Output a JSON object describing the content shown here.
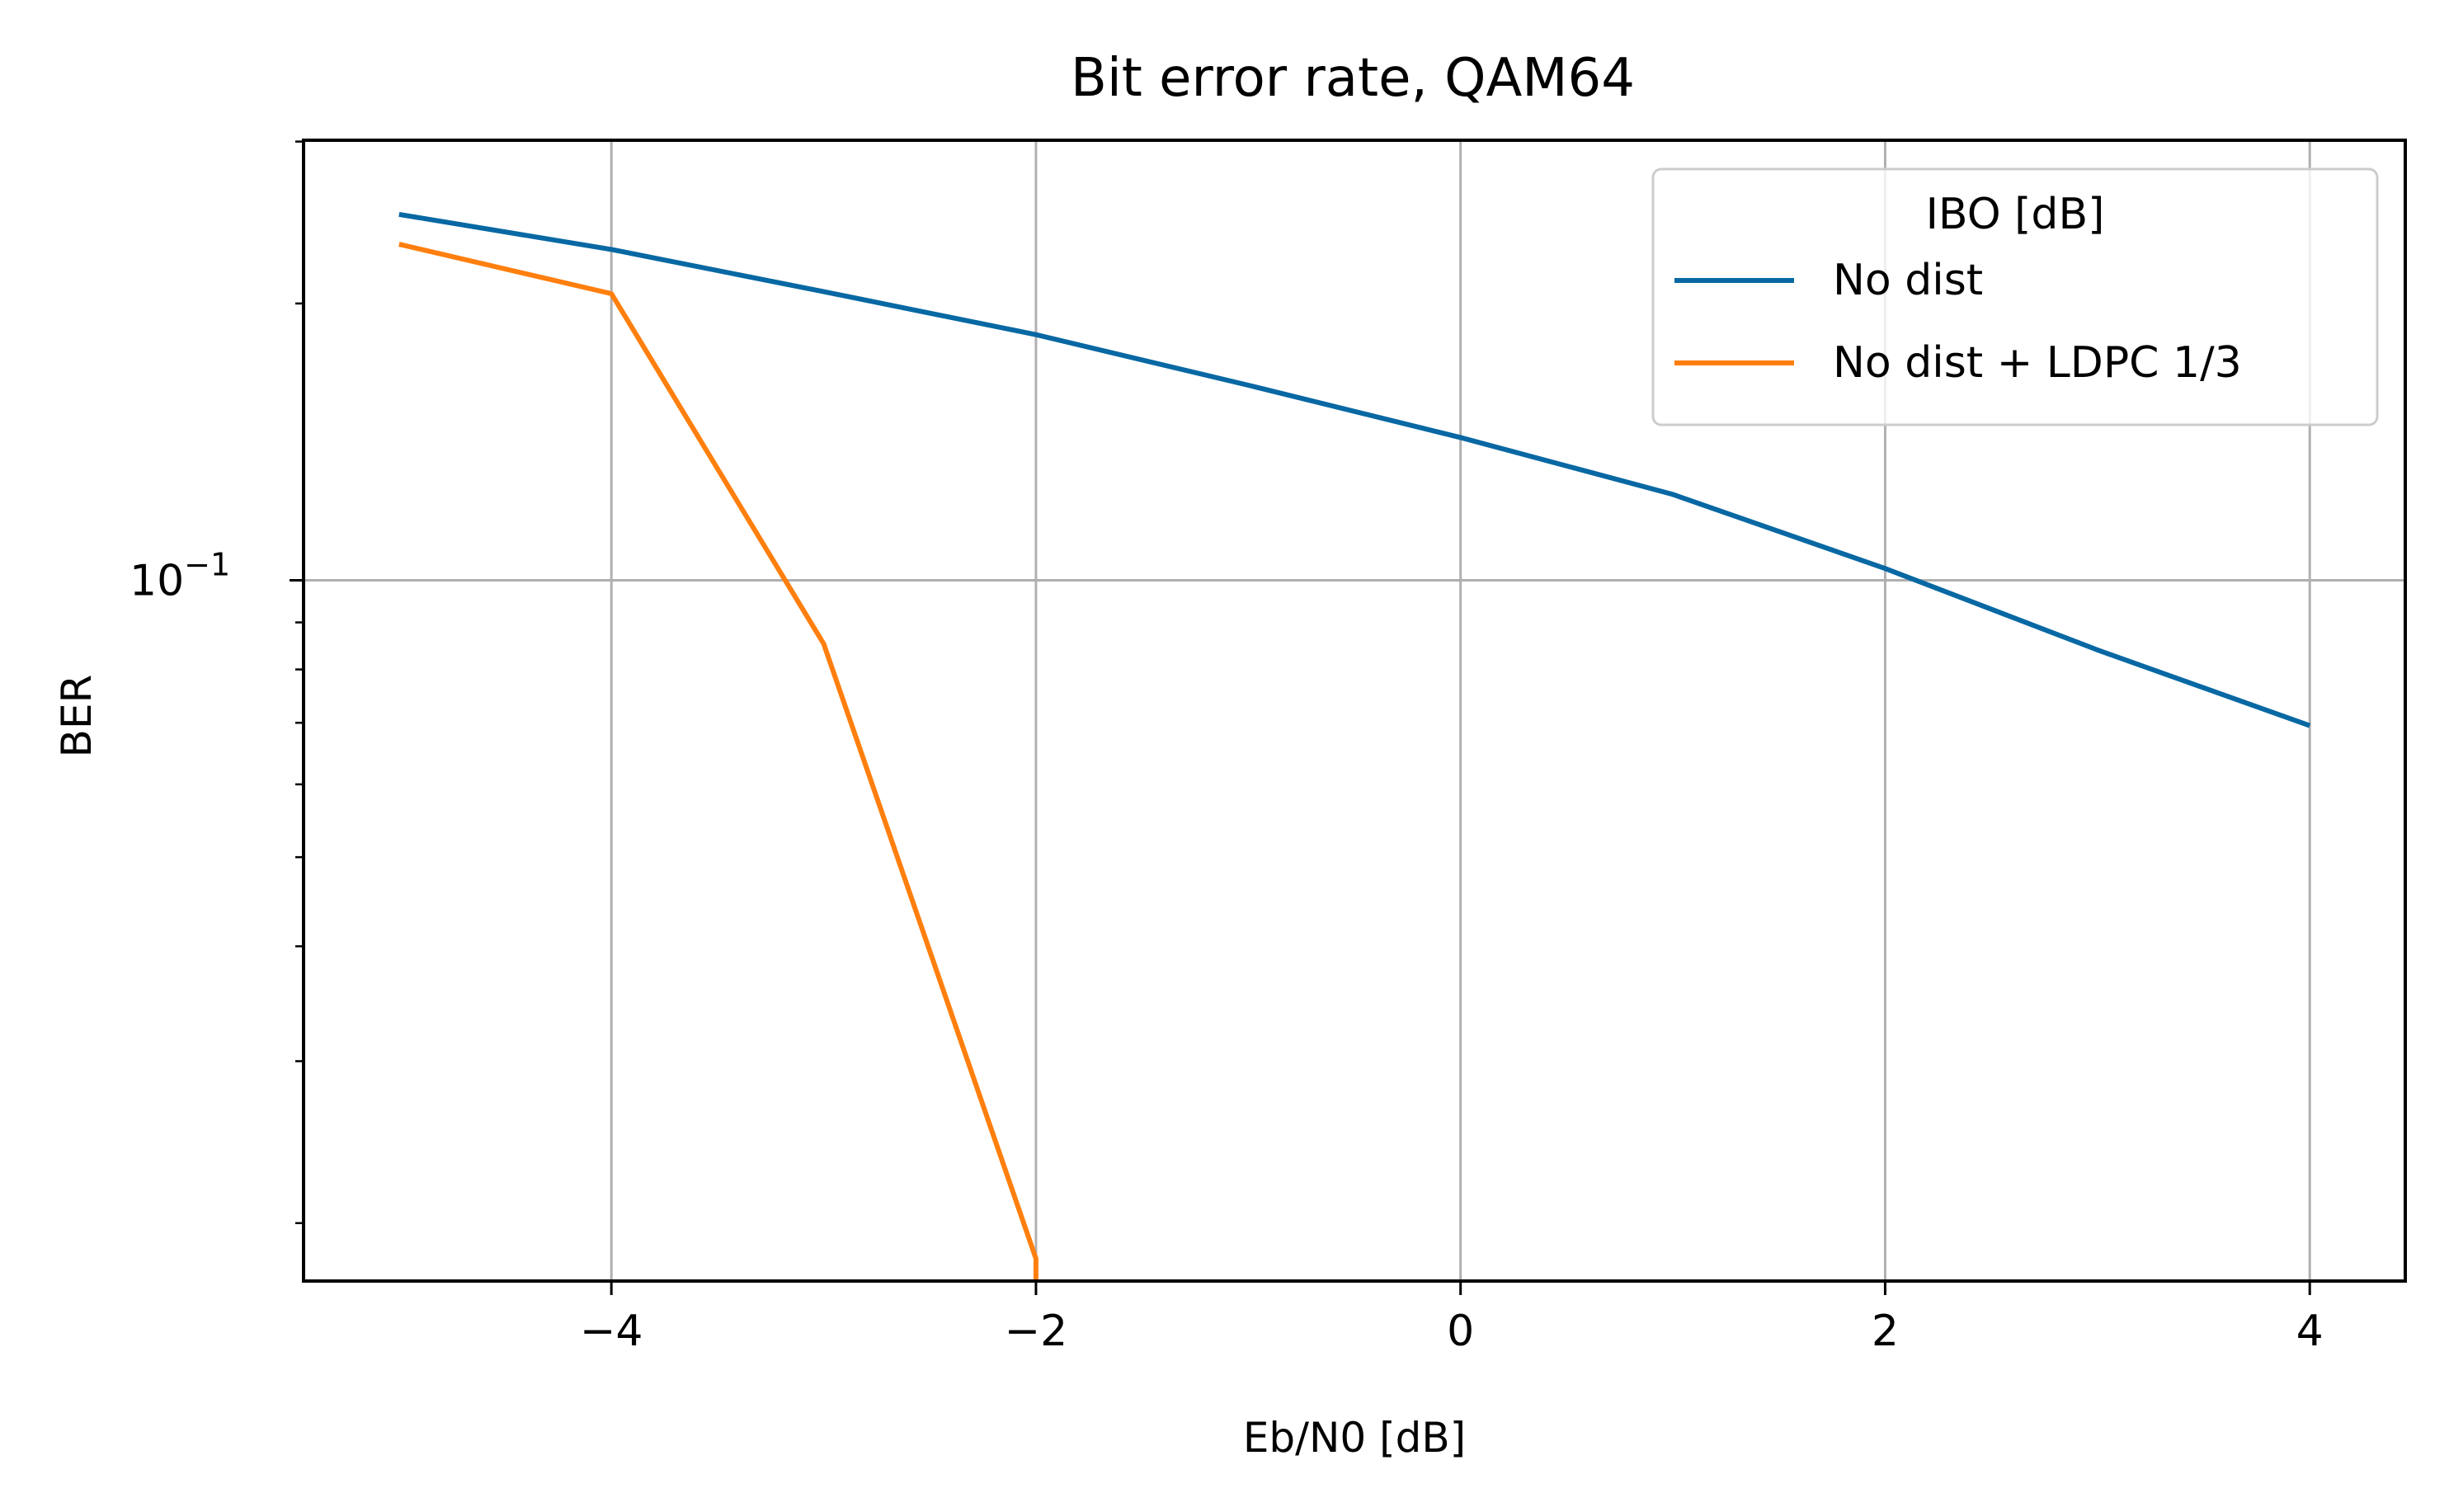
{
  "chart_data": {
    "type": "line",
    "title": "Bit error rate, QAM64",
    "xlabel": "Eb/N0 [dB]",
    "ylabel": "BER",
    "yscale": "log",
    "xlim": [
      -5.45,
      4.45
    ],
    "ylim": [
      0.0173,
      0.301
    ],
    "grid": true,
    "x_ticks": [
      {
        "value": -4,
        "label": "−4"
      },
      {
        "value": -2,
        "label": "−2"
      },
      {
        "value": 0,
        "label": "0"
      },
      {
        "value": 2,
        "label": "2"
      },
      {
        "value": 4,
        "label": "4"
      }
    ],
    "y_ticks": [
      {
        "value": 0.1,
        "label": "10"
      }
    ],
    "y_tick_exponent": "−1",
    "legend": {
      "title": "IBO [dB]",
      "position": "top-right"
    },
    "series": [
      {
        "name": "No dist",
        "color": "#0868a3",
        "x": [
          -5,
          -4,
          -3,
          -2,
          -1,
          0,
          1,
          2,
          3,
          4
        ],
        "y": [
          0.25,
          0.229,
          0.206,
          0.185,
          0.163,
          0.143,
          0.124,
          0.103,
          0.084,
          0.0695
        ]
      },
      {
        "name": "No dist + LDPC 1/3",
        "color": "#ff7f0e",
        "x": [
          -5,
          -4,
          -3,
          -2,
          -2
        ],
        "y": [
          0.232,
          0.205,
          0.0853,
          0.0183,
          0.0173
        ]
      }
    ]
  }
}
